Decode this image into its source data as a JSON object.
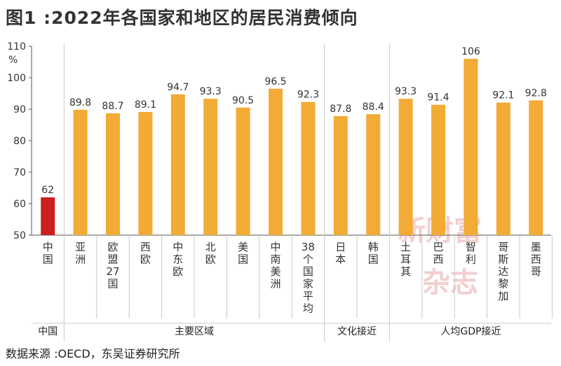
{
  "title": "图1 :2022年各国家和地区的居民消费倾向",
  "source": "数据来源 :OECD，东吴证券研究所",
  "watermark": [
    "新财富",
    "杂志"
  ],
  "colors": {
    "highlight": "#cc1f1f",
    "bar": "#f2ab35",
    "grid": "#c9c9c9",
    "axis": "#555555"
  },
  "chart_data": {
    "type": "bar",
    "title": "图1 :2022年各国家和地区的居民消费倾向",
    "ylabel": "%",
    "ylim": [
      50,
      110
    ],
    "yticks": [
      50,
      60,
      70,
      80,
      90,
      100,
      110
    ],
    "grid": false,
    "categories": [
      "中国",
      "亚洲",
      "欧盟27国",
      "西欧",
      "中东欧",
      "北欧",
      "美国",
      "中南美洲",
      "38个国家平均",
      "日本",
      "韩国",
      "土耳其",
      "巴西",
      "智利",
      "哥斯达黎加",
      "墨西哥"
    ],
    "values": [
      62,
      89.8,
      88.7,
      89.1,
      94.7,
      93.3,
      90.5,
      96.5,
      92.3,
      87.8,
      88.4,
      93.3,
      91.4,
      106,
      92.1,
      92.8
    ],
    "value_labels": [
      "62",
      "89.8",
      "88.7",
      "89.1",
      "94.7",
      "93.3",
      "90.5",
      "96.5",
      "92.3",
      "87.8",
      "88.4",
      "93.3",
      "91.4",
      "106",
      "92.1",
      "92.8"
    ],
    "highlight_index": 0,
    "groups": [
      {
        "label": "中国",
        "start": 0,
        "end": 0
      },
      {
        "label": "主要区域",
        "start": 1,
        "end": 8
      },
      {
        "label": "文化接近",
        "start": 9,
        "end": 10
      },
      {
        "label": "人均GDP接近",
        "start": 11,
        "end": 15
      }
    ]
  }
}
